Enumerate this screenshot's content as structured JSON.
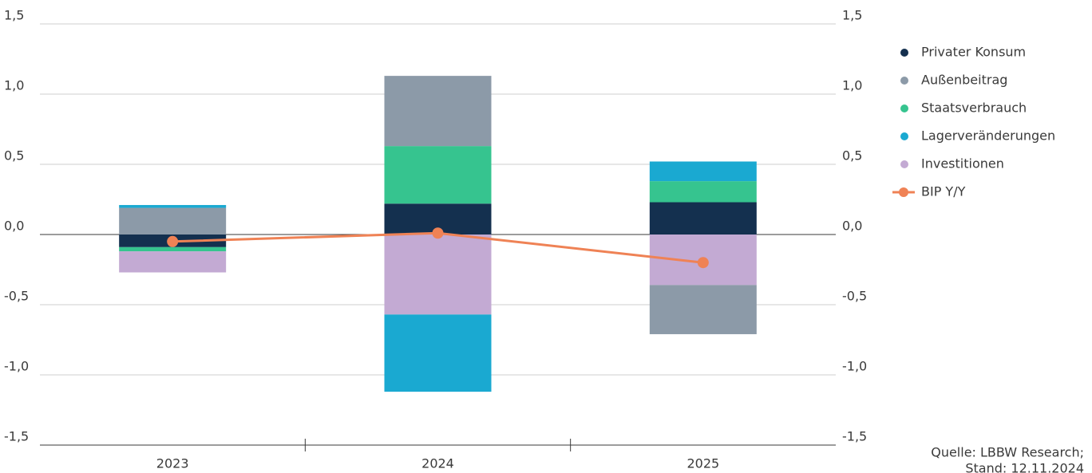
{
  "chart_data": {
    "type": "stacked-bar-line",
    "categories": [
      "2023",
      "2024",
      "2025"
    ],
    "series": [
      {
        "name": "Privater Konsum",
        "color": "#14304f",
        "values": [
          -0.09,
          0.22,
          0.23
        ]
      },
      {
        "name": "Außenbeitrag",
        "color": "#8c9aa8",
        "values": [
          0.19,
          0.5,
          -0.35
        ]
      },
      {
        "name": "Staatsverbrauch",
        "color": "#36c48f",
        "values": [
          -0.03,
          0.41,
          0.15
        ]
      },
      {
        "name": "Lagerveränderungen",
        "color": "#1aa9d1",
        "values": [
          0.02,
          -0.55,
          0.14
        ]
      },
      {
        "name": "Investitionen",
        "color": "#c3aad3",
        "values": [
          -0.15,
          -0.57,
          -0.36
        ]
      },
      {
        "name": "BIP Y/Y",
        "color": "#ef8255",
        "type": "line",
        "values": [
          -0.05,
          0.01,
          -0.2
        ]
      }
    ],
    "ylim": [
      -1.5,
      1.5
    ],
    "yticks": [
      {
        "value": -1.5,
        "label": "-1,5"
      },
      {
        "value": -1,
        "label": "-1,0"
      },
      {
        "value": -0.5,
        "label": "-0,5"
      },
      {
        "value": 0,
        "label": "0,0"
      },
      {
        "value": 0.5,
        "label": "0,5"
      },
      {
        "value": 1,
        "label": "1,0"
      },
      {
        "value": 1.5,
        "label": "1,5"
      }
    ],
    "grid": true,
    "legend": "right",
    "source": [
      "Quelle: LBBW Research;",
      "Stand: 12.11.2024"
    ]
  }
}
